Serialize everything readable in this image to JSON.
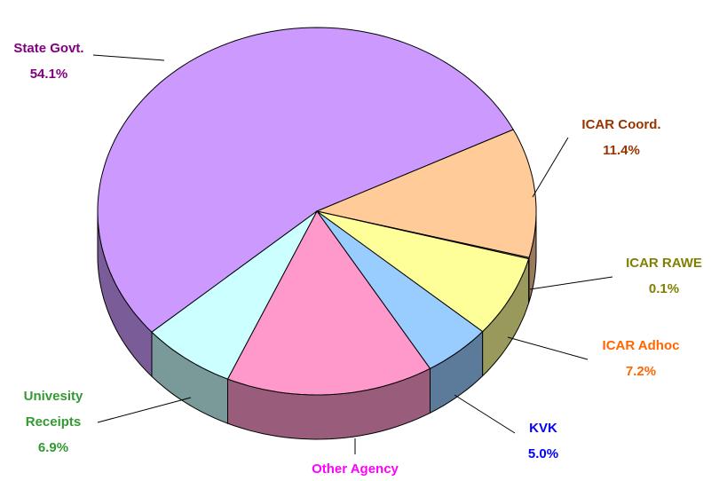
{
  "chart_data": {
    "type": "pie3d",
    "categories": [
      "State Govt.",
      "ICAR Coord.",
      "ICAR RAWE",
      "ICAR Adhoc",
      "KVK",
      "Other Agency",
      "Univesity Receipts"
    ],
    "values": [
      54.1,
      11.4,
      0.1,
      7.2,
      5.0,
      15.3,
      6.9
    ],
    "value_labels": [
      "54.1%",
      "11.4%",
      "0.1%",
      "7.2%",
      "5.0%",
      null,
      "6.9%"
    ],
    "colors": [
      "#cc99ff",
      "#ffcc99",
      "#c0c080",
      "#ffff99",
      "#99ccff",
      "#ff99cc",
      "#ccffff"
    ],
    "label_colors": [
      "#800080",
      "#993300",
      "#808000",
      "#ff6600",
      "#0000ff",
      "#ff00ff",
      "#339933"
    ]
  }
}
